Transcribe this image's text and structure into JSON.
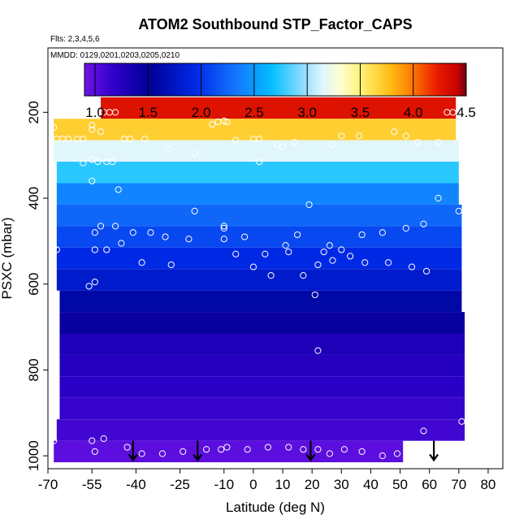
{
  "chart_data": {
    "type": "heatmap",
    "title": "ATOM2 Southbound STP_Factor_CAPS",
    "flights_label": "Flts: 2,3,4,5,6",
    "dates_label": "MMDD: 0129,0201,0203,0205,0210",
    "xlabel": "Latitude (deg N)",
    "ylabel": "PSXC (mbar)",
    "xlim": [
      -70,
      85
    ],
    "ylim": [
      1030,
      50
    ],
    "x_ticks": [
      -70,
      -55,
      -40,
      -25,
      -10,
      0,
      10,
      20,
      30,
      40,
      50,
      60,
      70,
      80
    ],
    "x_tick_labels": [
      "-70",
      "-55",
      "-40",
      "-25",
      "-10",
      "0",
      "10",
      "20",
      "30",
      "40",
      "50",
      "60",
      "70",
      "80"
    ],
    "y_ticks": [
      200,
      400,
      600,
      800,
      1000
    ],
    "y_tick_labels": [
      "200",
      "400",
      "600",
      "800",
      "1000"
    ],
    "colorbar": {
      "min": 0.9,
      "max": 4.5,
      "ticks": [
        1.0,
        1.5,
        2.0,
        2.5,
        3.0,
        3.5,
        4.0,
        4.5
      ],
      "tick_labels": [
        "1.0",
        "1.5",
        "2.0",
        "2.5",
        "3.0",
        "3.5",
        "4.0",
        "4.5"
      ]
    },
    "bands": [
      {
        "p_top": 165,
        "p_bot": 215,
        "lat_min": -52,
        "lat_max": 69,
        "value": 4.3
      },
      {
        "p_top": 215,
        "p_bot": 265,
        "lat_min": -68,
        "lat_max": 69,
        "value": 3.7
      },
      {
        "p_top": 265,
        "p_bot": 315,
        "lat_min": -68,
        "lat_max": 70,
        "value": 3.15
      },
      {
        "p_top": 315,
        "p_bot": 365,
        "lat_min": -67,
        "lat_max": 70,
        "value": 2.75
      },
      {
        "p_top": 365,
        "p_bot": 415,
        "lat_min": -67,
        "lat_max": 70,
        "value": 2.4
      },
      {
        "p_top": 415,
        "p_bot": 465,
        "lat_min": -67,
        "lat_max": 71,
        "value": 2.25
      },
      {
        "p_top": 465,
        "p_bot": 515,
        "lat_min": -67,
        "lat_max": 71,
        "value": 2.1
      },
      {
        "p_top": 515,
        "p_bot": 565,
        "lat_min": -67,
        "lat_max": 71,
        "value": 1.95
      },
      {
        "p_top": 565,
        "p_bot": 615,
        "lat_min": -67,
        "lat_max": 71,
        "value": 1.8
      },
      {
        "p_top": 615,
        "p_bot": 665,
        "lat_min": -66,
        "lat_max": 71,
        "value": 1.6
      },
      {
        "p_top": 665,
        "p_bot": 715,
        "lat_min": -66,
        "lat_max": 72,
        "value": 1.45
      },
      {
        "p_top": 715,
        "p_bot": 765,
        "lat_min": -66,
        "lat_max": 72,
        "value": 1.3
      },
      {
        "p_top": 765,
        "p_bot": 815,
        "lat_min": -66,
        "lat_max": 72,
        "value": 1.25
      },
      {
        "p_top": 815,
        "p_bot": 865,
        "lat_min": -66,
        "lat_max": 72,
        "value": 1.2
      },
      {
        "p_top": 865,
        "p_bot": 915,
        "lat_min": -66,
        "lat_max": 72,
        "value": 1.15
      },
      {
        "p_top": 915,
        "p_bot": 965,
        "lat_min": -67,
        "lat_max": 72,
        "value": 1.1
      },
      {
        "p_top": 965,
        "p_bot": 1015,
        "lat_min": -68,
        "lat_max": 51,
        "value": 0.98
      }
    ],
    "points": [
      {
        "lat": -51,
        "p": 200
      },
      {
        "lat": -49,
        "p": 200
      },
      {
        "lat": -47,
        "p": 200
      },
      {
        "lat": -68,
        "p": 235
      },
      {
        "lat": -55,
        "p": 230
      },
      {
        "lat": -55,
        "p": 240
      },
      {
        "lat": -52,
        "p": 245
      },
      {
        "lat": -14,
        "p": 228
      },
      {
        "lat": -12,
        "p": 222
      },
      {
        "lat": -10,
        "p": 220
      },
      {
        "lat": -9,
        "p": 222
      },
      {
        "lat": -67,
        "p": 262
      },
      {
        "lat": -65,
        "p": 262
      },
      {
        "lat": -63,
        "p": 262
      },
      {
        "lat": -60,
        "p": 262
      },
      {
        "lat": -58,
        "p": 262
      },
      {
        "lat": -44,
        "p": 262
      },
      {
        "lat": -42,
        "p": 262
      },
      {
        "lat": -37,
        "p": 262
      },
      {
        "lat": -29,
        "p": 285
      },
      {
        "lat": -20,
        "p": 295
      },
      {
        "lat": -6,
        "p": 265
      },
      {
        "lat": 0,
        "p": 262
      },
      {
        "lat": 2,
        "p": 262
      },
      {
        "lat": 8,
        "p": 275
      },
      {
        "lat": 10,
        "p": 280
      },
      {
        "lat": 14,
        "p": 270
      },
      {
        "lat": 27,
        "p": 275
      },
      {
        "lat": 30,
        "p": 255
      },
      {
        "lat": 36,
        "p": 255
      },
      {
        "lat": 48,
        "p": 245
      },
      {
        "lat": 52,
        "p": 255
      },
      {
        "lat": 56,
        "p": 270
      },
      {
        "lat": 63,
        "p": 270
      },
      {
        "lat": 66,
        "p": 200
      },
      {
        "lat": 68,
        "p": 200
      },
      {
        "lat": -55,
        "p": 310
      },
      {
        "lat": -53,
        "p": 315
      },
      {
        "lat": -50,
        "p": 315
      },
      {
        "lat": -48,
        "p": 315
      },
      {
        "lat": -58,
        "p": 318
      },
      {
        "lat": 2,
        "p": 315
      },
      {
        "lat": -55,
        "p": 360
      },
      {
        "lat": -46,
        "p": 380
      },
      {
        "lat": -20,
        "p": 430
      },
      {
        "lat": -10,
        "p": 465
      },
      {
        "lat": -10,
        "p": 470
      },
      {
        "lat": -10,
        "p": 495
      },
      {
        "lat": 19,
        "p": 415
      },
      {
        "lat": 63,
        "p": 400
      },
      {
        "lat": 70,
        "p": 430
      },
      {
        "lat": -68,
        "p": 515
      },
      {
        "lat": -67,
        "p": 520
      },
      {
        "lat": -54,
        "p": 480
      },
      {
        "lat": -52,
        "p": 465
      },
      {
        "lat": -54,
        "p": 520
      },
      {
        "lat": -50,
        "p": 520
      },
      {
        "lat": -47,
        "p": 465
      },
      {
        "lat": -45,
        "p": 505
      },
      {
        "lat": -41,
        "p": 480
      },
      {
        "lat": -38,
        "p": 550
      },
      {
        "lat": -35,
        "p": 480
      },
      {
        "lat": -30,
        "p": 490
      },
      {
        "lat": -28,
        "p": 555
      },
      {
        "lat": -22,
        "p": 495
      },
      {
        "lat": -6,
        "p": 530
      },
      {
        "lat": -3,
        "p": 490
      },
      {
        "lat": 0,
        "p": 560
      },
      {
        "lat": 4,
        "p": 530
      },
      {
        "lat": 6,
        "p": 580
      },
      {
        "lat": 11,
        "p": 510
      },
      {
        "lat": 12,
        "p": 525
      },
      {
        "lat": 15,
        "p": 485
      },
      {
        "lat": 17,
        "p": 580
      },
      {
        "lat": 21,
        "p": 625
      },
      {
        "lat": 22,
        "p": 555
      },
      {
        "lat": 24,
        "p": 525
      },
      {
        "lat": 26,
        "p": 510
      },
      {
        "lat": 27,
        "p": 545
      },
      {
        "lat": 30,
        "p": 520
      },
      {
        "lat": 33,
        "p": 535
      },
      {
        "lat": 37,
        "p": 485
      },
      {
        "lat": 38,
        "p": 550
      },
      {
        "lat": 44,
        "p": 480
      },
      {
        "lat": 46,
        "p": 550
      },
      {
        "lat": 52,
        "p": 470
      },
      {
        "lat": 54,
        "p": 560
      },
      {
        "lat": 58,
        "p": 460
      },
      {
        "lat": 59,
        "p": 570
      },
      {
        "lat": -56,
        "p": 605
      },
      {
        "lat": -54,
        "p": 595
      },
      {
        "lat": 22,
        "p": 755
      },
      {
        "lat": -68,
        "p": 965
      },
      {
        "lat": -55,
        "p": 965
      },
      {
        "lat": -51,
        "p": 960
      },
      {
        "lat": -54,
        "p": 990
      },
      {
        "lat": -43,
        "p": 980
      },
      {
        "lat": -38,
        "p": 995
      },
      {
        "lat": -31,
        "p": 995
      },
      {
        "lat": -24,
        "p": 990
      },
      {
        "lat": -16,
        "p": 985
      },
      {
        "lat": -11,
        "p": 985
      },
      {
        "lat": -9,
        "p": 980
      },
      {
        "lat": -2,
        "p": 985
      },
      {
        "lat": 5,
        "p": 980
      },
      {
        "lat": 12,
        "p": 980
      },
      {
        "lat": 17,
        "p": 985
      },
      {
        "lat": 22,
        "p": 985
      },
      {
        "lat": 26,
        "p": 995
      },
      {
        "lat": 31,
        "p": 985
      },
      {
        "lat": 37,
        "p": 990
      },
      {
        "lat": 44,
        "p": 1000
      },
      {
        "lat": 49,
        "p": 995
      },
      {
        "lat": 58,
        "p": 942
      },
      {
        "lat": 71,
        "p": 920
      }
    ],
    "arrows": [
      {
        "lat": -41,
        "p_from": 965,
        "p_to": 1010
      },
      {
        "lat": -19,
        "p_from": 965,
        "p_to": 1010
      },
      {
        "lat": 19.5,
        "p_from": 965,
        "p_to": 1010
      },
      {
        "lat": 61.5,
        "p_from": 965,
        "p_to": 1010
      }
    ]
  }
}
